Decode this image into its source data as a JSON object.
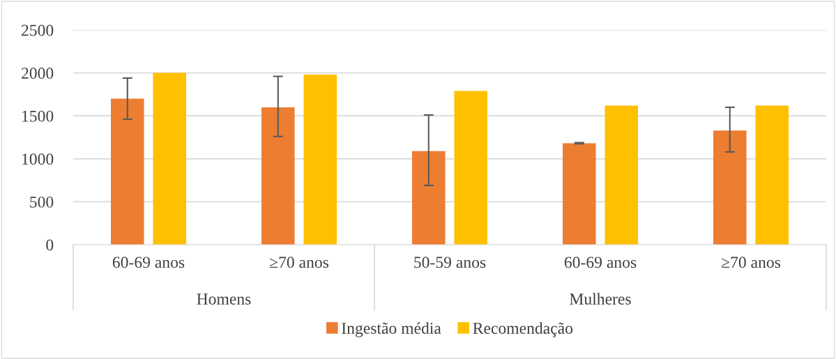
{
  "chart_data": {
    "type": "bar",
    "categories": [
      "60-69 anos",
      "≥70 anos",
      "50-59 anos",
      "60-69 anos",
      "≥70 anos"
    ],
    "series": [
      {
        "name": "Ingestão média",
        "color": "#ed7d31",
        "values": [
          1700,
          1600,
          1090,
          1180,
          1330
        ],
        "errors": [
          [
            1460,
            1940
          ],
          [
            1260,
            1960
          ],
          [
            690,
            1510
          ],
          [
            1175,
            1188
          ],
          [
            1080,
            1600
          ]
        ]
      },
      {
        "name": "Recomendação",
        "color": "#ffc000",
        "values": [
          2000,
          1980,
          1790,
          1620,
          1620
        ]
      }
    ],
    "annotations": [
      "Homens",
      "Mulheres"
    ],
    "ylim": [
      0,
      2500
    ],
    "yticks": [
      0,
      500,
      1000,
      1500,
      2000,
      2500
    ],
    "grid": "y",
    "legend": "bottom"
  }
}
